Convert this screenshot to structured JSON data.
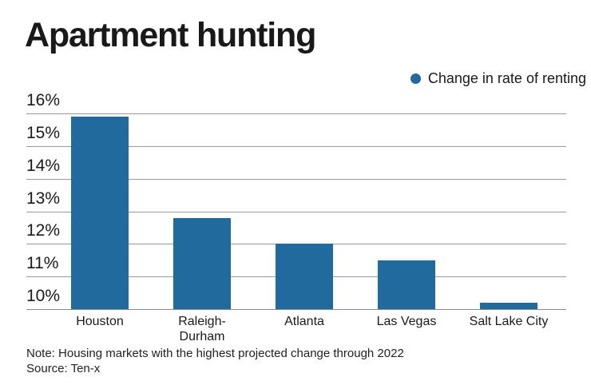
{
  "title": "Apartment hunting",
  "legend": {
    "label": "Change in rate of renting",
    "marker_color": "#206a9e"
  },
  "note": "Note: Housing markets with the highest projected change through 2022",
  "source": "Source: Ten-x",
  "colors": {
    "bar": "#206a9e",
    "gridline": "#999999",
    "axis_line": "#8a8a8a",
    "text": "#1a1a1a",
    "background": "#ffffff"
  },
  "chart_data": {
    "type": "bar",
    "title": "Apartment hunting",
    "series_name": "Change in rate of renting",
    "categories": [
      "Houston",
      "Raleigh-Durham",
      "Atlanta",
      "Las Vegas",
      "Salt Lake City"
    ],
    "category_label_lines": [
      [
        "Houston"
      ],
      [
        "Raleigh-",
        "Durham"
      ],
      [
        "Atlanta"
      ],
      [
        "Las Vegas"
      ],
      [
        "Salt Lake City"
      ]
    ],
    "values": [
      15.9,
      12.8,
      12.0,
      11.5,
      10.2
    ],
    "unit": "%",
    "xlabel": "",
    "ylabel": "",
    "ylim": [
      10,
      16
    ],
    "yticks": [
      16,
      15,
      14,
      13,
      12,
      11,
      10
    ],
    "ytick_suffix": "%",
    "grid": true,
    "legend_position": "top-right",
    "bar_color": "#206a9e"
  }
}
